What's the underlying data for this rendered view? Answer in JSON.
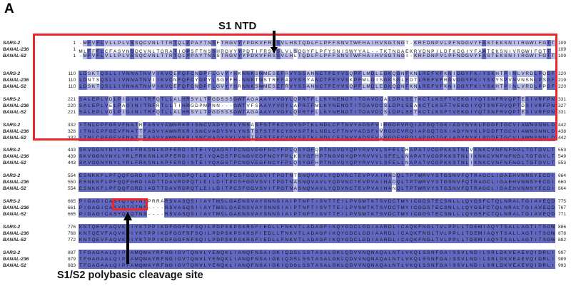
{
  "panel_letter": "A",
  "annotations": {
    "s1_ntd": "S1 NTD",
    "cleavage_site": "S1/S2 polybasic cleavage site"
  },
  "colors": {
    "identical_all": "#6368c0",
    "identical_partial": "#b6b8e6",
    "highlight_box": "#e8282c"
  },
  "blocks": [
    {
      "rows": [
        {
          "label": "SARS-2",
          "start": "1",
          "seq": "-MFVFLVLLPLVSSQCVNLTTRTQLPPAYTNSFTRGVYYPDKVFRSSVLHSTQDLFLPFFSNVTWFHAIHVSGTNGT-KRFDNPVLPFNDGVYFASTEKSNIIRGWIFGTT",
          "end": "109"
        },
        {
          "label": "BANAL-236",
          "start": "1",
          "seq": "MLFFFLCFASVNSQCVNLTGRATIQPSFTNSSHRGVYYPDTIFRSNSLVLSQGYFLPFYSNISWYYAL--TKTNGAEKRVDNPILDFKDGIYFAATEKSNIVRGWIFGTT",
          "end": "109"
        },
        {
          "label": "BANAL-52",
          "start": "1",
          "seq": "-MFVFLVLLPLVSSQCVNLTTRTQLPPAYTNSSTRGVYYPDKVFRSSVLHLTQDLFLPFFSNVTWFHAIHVSGTNGI-KRFDNPVLPFNDGVYFASTEKSNIIRGWIFGTT",
          "end": "109"
        }
      ]
    },
    {
      "rows": [
        {
          "label": "SARS-2",
          "start": "110",
          "seq": "LDSKTQSLLIVNNATNVVIKVCEFQFCNDPFLGVYYHKNNKSWMESEFRVYSSANNCTFEYVSQPFLMDLEGKQGNFKNLREFVFKNIDGYFKIYSKHTPINLVRDLPQGF",
          "end": "220"
        },
        {
          "label": "BANAL-236",
          "start": "110",
          "seq": "LDNTSQSLLIVNNATNVIIKVCNFQFCYDPYLSGYFH-NNKTWSTREFAVYSSYANCTFEYVSKPFMLDISGKSGLFDTLREFVFRNVDGYFKIYSKYSPVNVNSNLPSGF",
          "end": "219"
        },
        {
          "label": "BANAL-52",
          "start": "110",
          "seq": "LDSKTQSLLIVNNATNVVIKVCEFQFCNDPFLGVYYHRNNKSWMESEFRVYSSANNCTFEYVSQPFLMDLEGKQGNFKNLREFVFKNIDGYFKIYSKHTPINLVRDLPPGF",
          "end": "220"
        }
      ]
    },
    {
      "rows": [
        {
          "label": "SARS-2",
          "start": "221",
          "seq": "SALEPLVDLPIGINITRFQTLLALHRSYLTPGDSSSGWTAGAAAYYVGYLQPRTFLLKYNENGTITDAVDCALDPLSETKCTLKSFTVEKGIYQTSNFRVQPTESIVRFPN",
          "end": "331"
        },
        {
          "label": "BANAL-236",
          "start": "220",
          "seq": "SALEPLVELPAGINITRFRTLLTIHRGDPMPNN---GWTVFSAAYYVGYLAPRTFMLKYNENGTITDAVDCSLDPLSEAKCTLKSFTVEKGIYQTSNFRVQPTDSIVRFPN",
          "end": "327"
        },
        {
          "label": "BANAL-52",
          "start": "221",
          "seq": "SALEPLVDLPIGINITRFQTLLALHRSYLTPGDSSSGWTAGAAAYYVGYLQPRTFLLKYNENGTITDAVDCSLDPLSETKCTLKSFTVEKGIYQTSNFRVQPTESIVRFPN",
          "end": "331"
        }
      ]
    },
    {
      "rows": [
        {
          "label": "SARS-2",
          "start": "332",
          "seq": "ITNLCPFGEVFNATRFASVYAWNRKRISNCVADYSVLYNSASFSTFKCYGVSPTKLNDLCFTNVYADSFVIRGDEVRQIAPGQTGKIADYNYKLPDDFTGCVIAWNSNNLD",
          "end": "442"
        },
        {
          "label": "BANAL-236",
          "start": "328",
          "seq": "ITNLCPFGEVFNATTFASVYAWNRKRISNCVADYSVLYNSTSFSTFKCYGVSPTKLNDLCFTNVYADSFVVRGDEVRQIAPGQTGKIADYNYKLPDDFTGCVIAWNSNNLD",
          "end": "438"
        },
        {
          "label": "BANAL-52",
          "start": "332",
          "seq": "ITNLCPFGEVFNATTFASVYAWNRKRISNCVADYSVLYNSTSFSTFKCYGVSPTKLNDLCFTNVYADSFVVRGDEVRQIAPGQTGKIADYNYKLPDDFTGCVIAWNSNNLD",
          "end": "442"
        }
      ]
    },
    {
      "rows": [
        {
          "label": "SARS-2",
          "start": "443",
          "seq": "SKVGGNYNYLYRLFRKSNLKPFERDISTEIYQAGSTPCNGVEGFNCYFPLQSYGFQPTNGVGYQPYRVVVLSFELLHAPATVCGPKKSTNLVKNKCVNFNFNGLTGTGVLT",
          "end": "553"
        },
        {
          "label": "BANAL-236",
          "start": "439",
          "seq": "SKVGGNYNYLYRLFRKSNLKPFERDISTEIYQAGSTPCNGVEGFNCYFPLKSYGFHPTNGVGYQPYRVVVLSFELLNAPATVCGPKKSTNLIKNKCVNFNFNGLTGTGVLT",
          "end": "549"
        },
        {
          "label": "BANAL-52",
          "start": "443",
          "seq": "SKVGGNYNYLYRLFRKSNLKPFERDISTEIYQAGSTPCNGVEGFNCYFPLQSYGFHPTNGVGYQPYRVVVLSFELLNAPATVCGPKKSTNLIKNKCVNFNFNGLTGTGVLT",
          "end": "553"
        }
      ]
    },
    {
      "rows": [
        {
          "label": "SARS-2",
          "start": "554",
          "seq": "ESNKKFLPFQQFGRDIADTTDAVRDPQTLEILDITPCSFGGVSVITPGTNTSNQVAVLYQDVNCTEVPVAIHADQLTPTWRVYSTGSNVFQTRAGCLIGAEHVNNSYECDI",
          "end": "664"
        },
        {
          "label": "BANAL-236",
          "start": "550",
          "seq": "ESNKKFLPFQQFGRDIADTTDAVRDPQTLEILDITPCSFGGVSVITPGTNASNQVAVLYQDVNCTEVPVAIHADQLTPTWRVYSTGSNVFQTRAGCLIGAEHVNNSYECDI",
          "end": "660"
        },
        {
          "label": "BANAL-52",
          "start": "554",
          "seq": "ESNKKFLPFQQFGRDIADTTDAVRDPQTLEILDITPCSFGGVSVITPGTNASNQVAVLYQDVNCTEVPVAIHANQLTPTWRVYSTGSNVFQTRAGCLIGAEHVNNSYECDI",
          "end": "664"
        }
      ]
    },
    {
      "rows": [
        {
          "label": "SARS-2",
          "start": "665",
          "seq": "PIGAGICASYQTQTNSPRRARSVASQSIIAYTMSLGAENSVAYSNNSIAIPTNFTISVTTEILPVSMTKTSVDCTMYICGDSTECSNLLLQYGSFCTQLNRALTGIAVEQD",
          "end": "775"
        },
        {
          "label": "BANAL-236",
          "start": "661",
          "seq": "PIGAGICASYQTQTNS----RSVASQSIIAYTMSLGAENSVAYSNNSIAIPTNFTISVTTEILPVSMTKTSVDCTMYICGDSTECSNLLLQYGSFCTQLNRALTGIAVEQD",
          "end": "767"
        },
        {
          "label": "BANAL-52",
          "start": "665",
          "seq": "PIGAGICASYQTQTNS----RSVASQSIIAYTMSLGAENSVAYSNNSIAIPTNFTISVTTEILPVSMTKTSVDCTMYICGDSTECSNLLLQYGSFCTQLNRALTGIAVEQD",
          "end": "771"
        }
      ]
    },
    {
      "rows": [
        {
          "label": "SARS-2",
          "start": "776",
          "seq": "KNTQEVFAQVKQIYKTPPIKDFGGFNFSQILPDPSKPSKRSFIEDLLFNKVTLADAGFIKQYGDCLGDIAARDLICAQKFNGLTVLPPLLTDEMIAQYTSALLAGTITSGW",
          "end": "886"
        },
        {
          "label": "BANAL-236",
          "start": "768",
          "seq": "KNTQEVFAQVKQIYKTPPIKDFGGFNFSQILPDPSKPSKRSFIEDLLFNKVTLADAGFIKQYGDCLGDIAARDLICAQKFNGLTVLPPLLTDEMIAQYTSALLAGTITSGW",
          "end": "878"
        },
        {
          "label": "BANAL-52",
          "start": "772",
          "seq": "KNTQEVFAQVKQIYKTPPIKDFGGFNFSQILPDPSKPSKRSFIEDLLFNKVTLADAGFIKQYGDCLGDIAARDLICAQKFNGLTVLPPLLTDEMIAQYTSALLAGTITSGW",
          "end": "882"
        }
      ]
    },
    {
      "rows": [
        {
          "label": "SARS-2",
          "start": "887",
          "seq": "TFGAGAALQIPFAMQMAYRFNGIGVTQNVLYENQKLIANQFNSAIGKIQDSLSSTASALGKLQDVVNQNAQALNTLVKQLSSNFGAISSVLNDILSRLDKVEAEVQIDRLI",
          "end": "997"
        },
        {
          "label": "BANAL-236",
          "start": "879",
          "seq": "TFGAGAALQIPFAMQMAYRFNGIGVTQNVLYENQKLIANQFNSAIGKIQDSLSSTASALGKLQDVVNQNAQALNTLVKQLSSNFGAISSVLNDILSRLDKVEAEVQIDRLI",
          "end": "989"
        },
        {
          "label": "BANAL-52",
          "start": "883",
          "seq": "TFGAGAALQIPFAMQMAYRFNGIGVTQNVLYENQKLIANQFNSAIGKIQDSLSSTASALGKLQDVVNQNAQALNTLVKQLSSNFGAISSVLNDILSRLDKVEAEVQIDRLI",
          "end": "993"
        }
      ]
    }
  ]
}
